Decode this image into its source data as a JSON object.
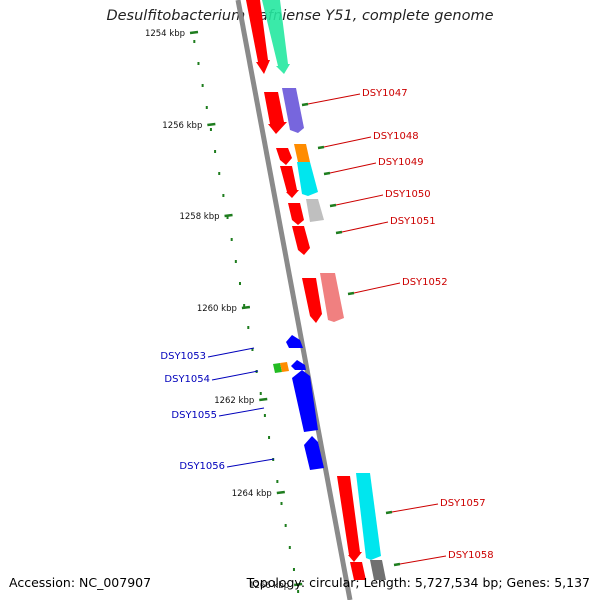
{
  "title": "Desulfitobacterium hafniense Y51, complete genome",
  "footer": {
    "accession": "Accession: NC_007907",
    "summary": "Topology: circular; Length: 5,727,534 bp; Genes: 5,137"
  },
  "ruler_labels": [
    "1254 kbp",
    "1256 kbp",
    "1258 kbp",
    "1260 kbp",
    "1262 kbp",
    "1264 kbp",
    "1266 kbp"
  ],
  "genes_forward": [
    "DSY1047",
    "DSY1048",
    "DSY1049",
    "DSY1050",
    "DSY1051",
    "DSY1052",
    "DSY1057",
    "DSY1058"
  ],
  "genes_reverse": [
    "DSY1053",
    "DSY1054",
    "DSY1055",
    "DSY1056"
  ],
  "colors": {
    "backbone": "#8c8c8c",
    "ruler_tick": "#1e7d1e",
    "forward_label": "#cc0000",
    "reverse_label": "#0000bb",
    "cds": "#ff0000",
    "cds_reverse": "#0000ff"
  }
}
